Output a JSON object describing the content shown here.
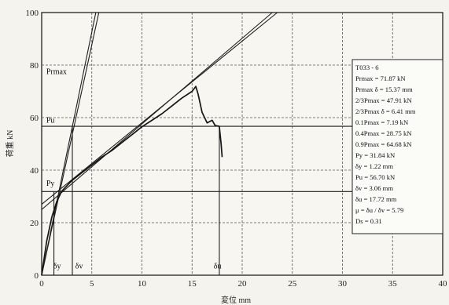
{
  "chart_data": {
    "type": "line",
    "title": "",
    "xlabel": "変位 mm",
    "ylabel": "荷重 kN",
    "xlim": [
      0,
      40
    ],
    "ylim": [
      0,
      100
    ],
    "x_ticks": [
      0,
      5,
      10,
      15,
      20,
      25,
      30,
      35,
      40
    ],
    "y_ticks": [
      0,
      20,
      40,
      60,
      80,
      100
    ],
    "x_tick_labels": [
      "0",
      "5",
      "10",
      "15",
      "20",
      "25",
      "30",
      "35",
      "40"
    ],
    "y_tick_labels": [
      "0",
      "20",
      "40",
      "60",
      "80",
      "100"
    ],
    "grid": true,
    "series": [
      {
        "values": [
          [
            0,
            0
          ],
          [
            0.5,
            13
          ],
          [
            1.0,
            22
          ],
          [
            1.5,
            28
          ],
          [
            2.0,
            32
          ],
          [
            3,
            36
          ],
          [
            4,
            39
          ],
          [
            5,
            42
          ],
          [
            6,
            45
          ],
          [
            7,
            47.5
          ],
          [
            8,
            50.5
          ],
          [
            9,
            53.5
          ],
          [
            10,
            56.5
          ],
          [
            11,
            59
          ],
          [
            12,
            61.5
          ],
          [
            13,
            64.5
          ],
          [
            14,
            67.5
          ],
          [
            15,
            70
          ],
          [
            15.37,
            71.87
          ],
          [
            15.6,
            69
          ],
          [
            16.0,
            62
          ],
          [
            16.5,
            58
          ],
          [
            17.0,
            59
          ],
          [
            17.3,
            57
          ],
          [
            17.72,
            56.7
          ],
          [
            17.9,
            50
          ],
          [
            18.0,
            45
          ]
        ]
      }
    ],
    "reference_lines": [
      {
        "from": [
          0,
          0
        ],
        "to": [
          5.4,
          100
        ]
      },
      {
        "from": [
          0,
          0
        ],
        "to": [
          5.7,
          100
        ]
      },
      {
        "from": [
          0,
          25
        ],
        "to": [
          23,
          100
        ]
      },
      {
        "from": [
          0,
          27
        ],
        "to": [
          23.5,
          100
        ]
      },
      {
        "from": [
          0,
          31.84
        ],
        "to": [
          40,
          31.84
        ]
      },
      {
        "from": [
          0,
          56.7
        ],
        "to": [
          40,
          56.7
        ]
      },
      {
        "from": [
          1.22,
          0
        ],
        "to": [
          1.22,
          31.84
        ]
      },
      {
        "from": [
          3.06,
          0
        ],
        "to": [
          3.06,
          56.7
        ]
      },
      {
        "from": [
          17.72,
          0
        ],
        "to": [
          17.72,
          56.7
        ]
      }
    ],
    "annotations": [
      {
        "text": "Prmax",
        "x": 0.3,
        "y": 76.5
      },
      {
        "text": "Pu",
        "x": 0.3,
        "y": 58.0
      },
      {
        "text": "Py",
        "x": 0.3,
        "y": 34.0
      },
      {
        "text": "δy",
        "x": 1.0,
        "y": 2.5
      },
      {
        "text": "δv",
        "x": 3.2,
        "y": 2.5
      },
      {
        "text": "δu",
        "x": 17.0,
        "y": 2.5
      }
    ],
    "info_box": {
      "lines": [
        "T033 - 6",
        "Prmax = 71.87 kN",
        "Prmax δ = 15.37 mm",
        "2/3Pmax = 47.91 kN",
        "2/3Pmax δ = 6.41 mm",
        "0.1Pmax = 7.19 kN",
        "0.4Pmax = 28.75 kN",
        "0.9Pmax = 64.68 kN",
        "Py = 31.84 kN",
        "δy = 1.22 mm",
        "Pu = 56.70 kN",
        "δv = 3.06 mm",
        "δu = 17.72 mm",
        "μ = δu / δv = 5.79",
        "Ds = 0.31"
      ]
    }
  }
}
